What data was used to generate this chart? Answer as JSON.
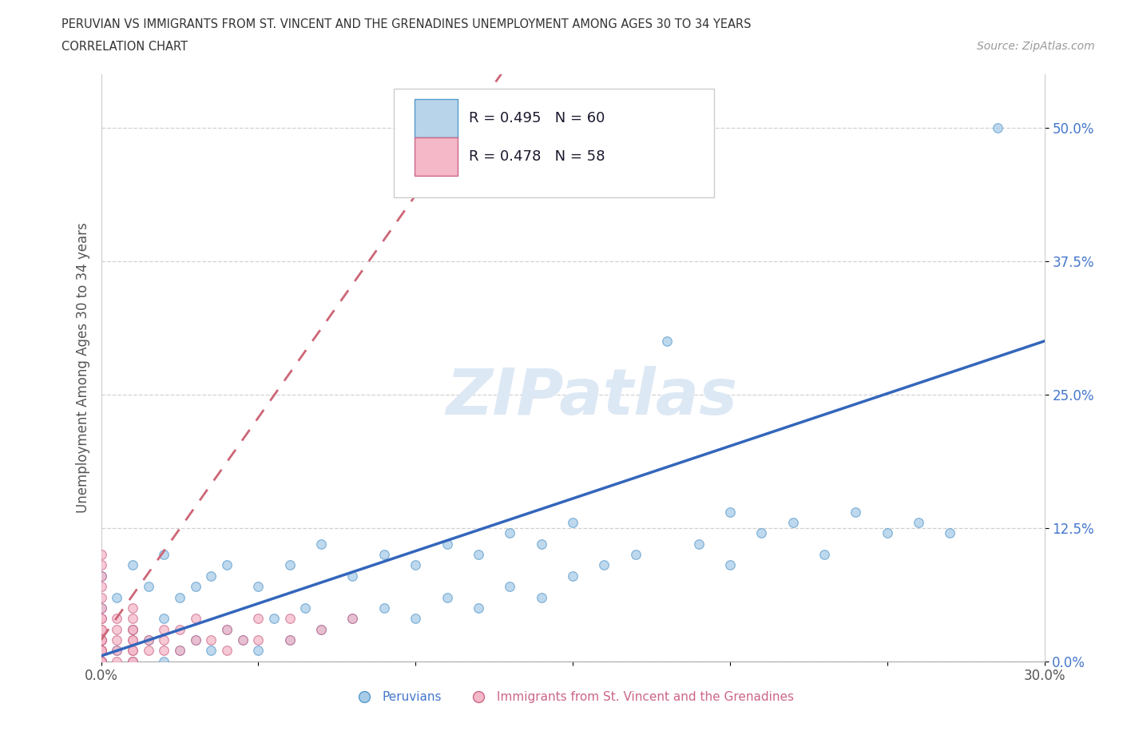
{
  "title_line1": "PERUVIAN VS IMMIGRANTS FROM ST. VINCENT AND THE GRENADINES UNEMPLOYMENT AMONG AGES 30 TO 34 YEARS",
  "title_line2": "CORRELATION CHART",
  "source_text": "Source: ZipAtlas.com",
  "ylabel": "Unemployment Among Ages 30 to 34 years",
  "xlim": [
    0.0,
    0.3
  ],
  "ylim": [
    0.0,
    0.55
  ],
  "ytick_vals": [
    0.0,
    0.125,
    0.25,
    0.375,
    0.5
  ],
  "ytick_labels": [
    "0.0%",
    "12.5%",
    "25.0%",
    "37.5%",
    "50.0%"
  ],
  "xtick_vals": [
    0.0,
    0.05,
    0.1,
    0.15,
    0.2,
    0.25,
    0.3
  ],
  "xtick_labels": [
    "0.0%",
    "",
    "",
    "",
    "",
    "",
    "30.0%"
  ],
  "peruvian_fill": "#a8cce8",
  "peruvian_edge": "#5599cc",
  "svg_fill": "#f4b8c8",
  "svg_edge": "#cc6688",
  "trend_blue": "#3366bb",
  "trend_pink": "#cc6677",
  "legend_box_blue": "#b8d4ea",
  "legend_box_pink": "#f4b8c8",
  "R_peruvian": 0.495,
  "N_peruvian": 60,
  "R_svg": 0.478,
  "N_svg": 58,
  "watermark_color": "#dde8f5",
  "background_color": "#ffffff",
  "peru_x": [
    0.0,
    0.0,
    0.0,
    0.005,
    0.005,
    0.01,
    0.01,
    0.01,
    0.015,
    0.015,
    0.02,
    0.02,
    0.02,
    0.025,
    0.025,
    0.03,
    0.03,
    0.035,
    0.035,
    0.04,
    0.04,
    0.045,
    0.05,
    0.05,
    0.055,
    0.06,
    0.06,
    0.065,
    0.07,
    0.07,
    0.08,
    0.08,
    0.09,
    0.09,
    0.1,
    0.1,
    0.11,
    0.11,
    0.12,
    0.12,
    0.13,
    0.13,
    0.14,
    0.14,
    0.15,
    0.15,
    0.16,
    0.17,
    0.18,
    0.19,
    0.2,
    0.2,
    0.21,
    0.22,
    0.23,
    0.24,
    0.25,
    0.26,
    0.27,
    0.285
  ],
  "peru_y": [
    0.02,
    0.05,
    0.08,
    0.01,
    0.06,
    0.0,
    0.03,
    0.09,
    0.02,
    0.07,
    0.0,
    0.04,
    0.1,
    0.01,
    0.06,
    0.02,
    0.07,
    0.01,
    0.08,
    0.03,
    0.09,
    0.02,
    0.01,
    0.07,
    0.04,
    0.02,
    0.09,
    0.05,
    0.03,
    0.11,
    0.04,
    0.08,
    0.05,
    0.1,
    0.04,
    0.09,
    0.06,
    0.11,
    0.05,
    0.1,
    0.07,
    0.12,
    0.06,
    0.11,
    0.08,
    0.13,
    0.09,
    0.1,
    0.3,
    0.11,
    0.09,
    0.14,
    0.12,
    0.13,
    0.1,
    0.14,
    0.12,
    0.13,
    0.12,
    0.5
  ],
  "svg_x": [
    0.0,
    0.0,
    0.0,
    0.0,
    0.0,
    0.0,
    0.0,
    0.0,
    0.0,
    0.0,
    0.0,
    0.0,
    0.0,
    0.0,
    0.0,
    0.0,
    0.0,
    0.0,
    0.0,
    0.0,
    0.0,
    0.0,
    0.0,
    0.0,
    0.005,
    0.005,
    0.005,
    0.005,
    0.005,
    0.01,
    0.01,
    0.01,
    0.01,
    0.01,
    0.01,
    0.01,
    0.01,
    0.01,
    0.01,
    0.015,
    0.015,
    0.02,
    0.02,
    0.02,
    0.025,
    0.025,
    0.03,
    0.03,
    0.035,
    0.04,
    0.04,
    0.045,
    0.05,
    0.05,
    0.06,
    0.06,
    0.07,
    0.08
  ],
  "svg_y": [
    0.0,
    0.0,
    0.0,
    0.0,
    0.0,
    0.0,
    0.0,
    0.01,
    0.01,
    0.01,
    0.01,
    0.02,
    0.02,
    0.02,
    0.03,
    0.03,
    0.04,
    0.04,
    0.05,
    0.06,
    0.07,
    0.08,
    0.09,
    0.1,
    0.0,
    0.01,
    0.02,
    0.03,
    0.04,
    0.0,
    0.0,
    0.01,
    0.01,
    0.02,
    0.02,
    0.03,
    0.03,
    0.04,
    0.05,
    0.01,
    0.02,
    0.01,
    0.02,
    0.03,
    0.01,
    0.03,
    0.02,
    0.04,
    0.02,
    0.01,
    0.03,
    0.02,
    0.02,
    0.04,
    0.02,
    0.04,
    0.03,
    0.04
  ]
}
